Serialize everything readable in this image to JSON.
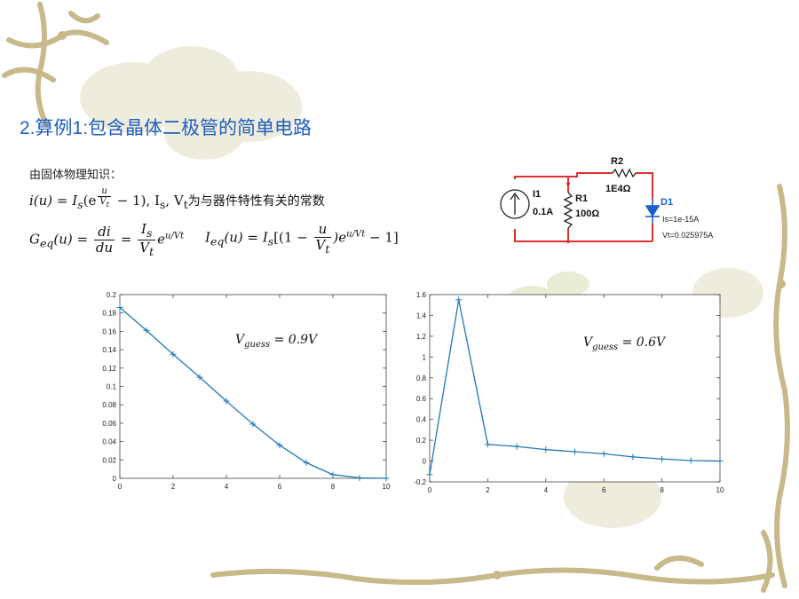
{
  "slide": {
    "title": "2.算例1:包含晶体二极管的简单电路",
    "intro": "由固体物理知识："
  },
  "formulas": {
    "f1_prefix": "i(u) = I",
    "f1_sub_s": "s",
    "f1_paren": "(e",
    "f1_exp_num": "u",
    "f1_exp_den": "V",
    "f1_exp_den_sub": "t",
    "f1_tail": " − 1), I",
    "f1_is_sub": "s",
    "f1_comma": ", V",
    "f1_vt_sub": "t",
    "f1_text": "为与器件特性有关的常数",
    "f2_lhs": "G",
    "f2_lhs_sub": "eq",
    "f2_lhs_arg": "(u) =",
    "f2_frac1_num": "di",
    "f2_frac1_den": "du",
    "f2_eq": "=",
    "f2_frac2_num": "I",
    "f2_frac2_num_sub": "s",
    "f2_frac2_den": "V",
    "f2_frac2_den_sub": "t",
    "f2_e": "e",
    "f2_exp": "u/Vt",
    "f3_lhs": "I",
    "f3_lhs_sub": "eq",
    "f3_mid": "(u) = I",
    "f3_is_sub": "s",
    "f3_open": "[(1 −",
    "f3_frac_num": "u",
    "f3_frac_den": "V",
    "f3_frac_den_sub": "t",
    "f3_close_e": ")e",
    "f3_exp": "u/Vt",
    "f3_end": " − 1]"
  },
  "circuit": {
    "source_label": "I1",
    "source_value": "0.1A",
    "r1_label": "R1",
    "r1_value": "100Ω",
    "r2_label": "R2",
    "r2_value": "1E4Ω",
    "diode_label": "D1",
    "diode_is": "Is=1e-15A",
    "diode_vt": "Vt=0.025975A",
    "wire_color": "#e03030",
    "diode_color": "#1a5fd0"
  },
  "chart_data": [
    {
      "type": "line",
      "title": "",
      "annotation": "V_guess = 0.9V",
      "annotation_main": "V",
      "annotation_sub": "guess",
      "annotation_rest": " = 0.9V",
      "xlabel": "",
      "ylabel": "",
      "xlim": [
        0,
        10
      ],
      "ylim": [
        0,
        0.2
      ],
      "xticks": [
        0,
        2,
        4,
        6,
        8,
        10
      ],
      "yticks": [
        0,
        0.02,
        0.04,
        0.06,
        0.08,
        0.1,
        0.12,
        0.14,
        0.16,
        0.18,
        0.2
      ],
      "xtick_labels": [
        "0",
        "2",
        "4",
        "6",
        "8",
        "10"
      ],
      "ytick_labels": [
        "0",
        "0.02",
        "0.04",
        "0.06",
        "0.08",
        "0.1",
        "0.12",
        "0.14",
        "0.16",
        "0.18",
        "0.2"
      ],
      "color": "#1f77b4",
      "x": [
        0,
        1,
        2,
        3,
        4,
        5,
        6,
        7,
        8,
        9,
        10
      ],
      "y": [
        0.186,
        0.161,
        0.135,
        0.11,
        0.084,
        0.059,
        0.036,
        0.017,
        0.004,
        0.0005,
        0.0
      ]
    },
    {
      "type": "line",
      "title": "",
      "annotation": "V_guess = 0.6V",
      "annotation_main": "V",
      "annotation_sub": "guess",
      "annotation_rest": " = 0.6V",
      "xlabel": "",
      "ylabel": "",
      "xlim": [
        0,
        10
      ],
      "ylim": [
        -0.2,
        1.6
      ],
      "xticks": [
        0,
        2,
        4,
        6,
        8,
        10
      ],
      "yticks": [
        -0.2,
        0,
        0.2,
        0.4,
        0.6,
        0.8,
        1,
        1.2,
        1.4,
        1.6
      ],
      "xtick_labels": [
        "0",
        "2",
        "4",
        "6",
        "8",
        "10"
      ],
      "ytick_labels": [
        "-0.2",
        "0",
        "0.2",
        "0.4",
        "0.6",
        "0.8",
        "1",
        "1.2",
        "1.4",
        "1.6"
      ],
      "color": "#1f77b4",
      "x": [
        0,
        1,
        2,
        3,
        4,
        5,
        6,
        7,
        8,
        9,
        10
      ],
      "y": [
        -0.13,
        1.55,
        0.16,
        0.14,
        0.11,
        0.09,
        0.07,
        0.04,
        0.02,
        0.005,
        0.0
      ]
    }
  ]
}
